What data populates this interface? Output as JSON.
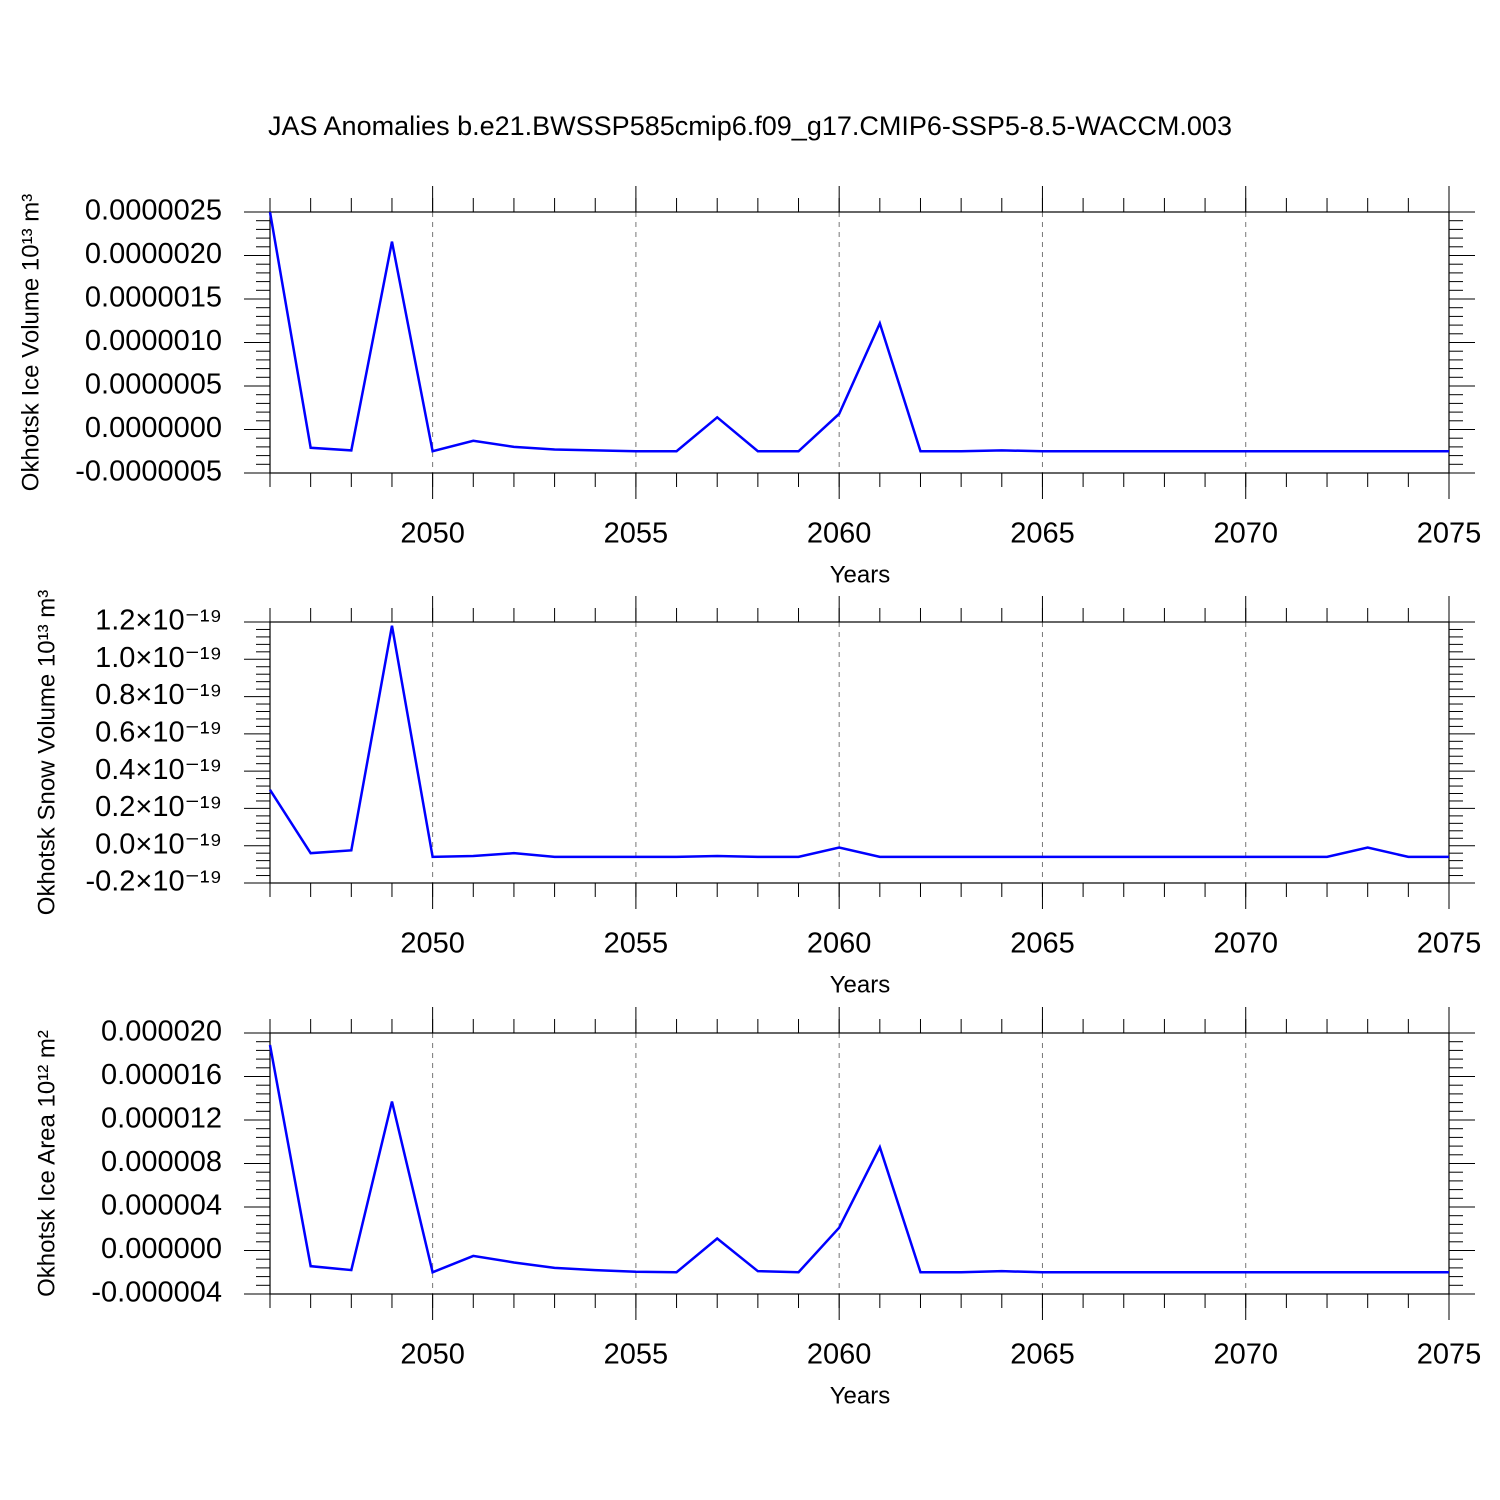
{
  "title": "JAS Anomalies b.e21.BWSSP585cmip6.f09_g17.CMIP6-SSP5-8.5-WACCM.003",
  "chart_data": [
    {
      "type": "line",
      "ylabel": "Okhotsk Ice Volume 10¹³ m³",
      "xlabel": "Years",
      "color": "#0000ff",
      "grid": true,
      "x": [
        2046,
        2047,
        2048,
        2049,
        2050,
        2051,
        2052,
        2053,
        2054,
        2055,
        2056,
        2057,
        2058,
        2059,
        2060,
        2061,
        2062,
        2063,
        2064,
        2065,
        2066,
        2067,
        2068,
        2069,
        2070,
        2071,
        2072,
        2073,
        2074,
        2075
      ],
      "values": [
        2.5e-06,
        -2.1e-07,
        -2.4e-07,
        2.16e-06,
        -2.5e-07,
        -1.3e-07,
        -2e-07,
        -2.3e-07,
        -2.4e-07,
        -2.5e-07,
        -2.5e-07,
        1.4e-07,
        -2.5e-07,
        -2.5e-07,
        1.8e-07,
        1.22e-06,
        -2.5e-07,
        -2.5e-07,
        -2.4e-07,
        -2.5e-07,
        -2.5e-07,
        -2.5e-07,
        -2.5e-07,
        -2.5e-07,
        -2.5e-07,
        -2.5e-07,
        -2.5e-07,
        -2.5e-07,
        -2.5e-07,
        -2.5e-07
      ],
      "xlim": [
        2046,
        2075
      ],
      "xticks": [
        2050,
        2055,
        2060,
        2065,
        2070,
        2075
      ],
      "ylim": [
        -5e-07,
        2.5e-06
      ],
      "yticks": [
        {
          "value": -5e-07,
          "label": "-0.0000005"
        },
        {
          "value": 0,
          "label": "0.0000000"
        },
        {
          "value": 5e-07,
          "label": "0.0000005"
        },
        {
          "value": 1e-06,
          "label": "0.0000010"
        },
        {
          "value": 1.5e-06,
          "label": "0.0000015"
        },
        {
          "value": 2e-06,
          "label": "0.0000020"
        },
        {
          "value": 2.5e-06,
          "label": "0.0000025"
        }
      ]
    },
    {
      "type": "line",
      "ylabel": "Okhotsk Snow Volume 10¹³ m³",
      "xlabel": "Years",
      "color": "#0000ff",
      "grid": true,
      "x": [
        2046,
        2047,
        2048,
        2049,
        2050,
        2051,
        2052,
        2053,
        2054,
        2055,
        2056,
        2057,
        2058,
        2059,
        2060,
        2061,
        2062,
        2063,
        2064,
        2065,
        2066,
        2067,
        2068,
        2069,
        2070,
        2071,
        2072,
        2073,
        2074,
        2075
      ],
      "values": [
        3e-20,
        -4e-21,
        -2.5e-21,
        1.18e-19,
        -6e-21,
        -5.5e-21,
        -4e-21,
        -6e-21,
        -6e-21,
        -6e-21,
        -6e-21,
        -5.5e-21,
        -6e-21,
        -6e-21,
        -1e-21,
        -6e-21,
        -6e-21,
        -6e-21,
        -6e-21,
        -6e-21,
        -6e-21,
        -6e-21,
        -6e-21,
        -6e-21,
        -6e-21,
        -6e-21,
        -6e-21,
        -1e-21,
        -6e-21,
        -6e-21
      ],
      "xlim": [
        2046,
        2075
      ],
      "xticks": [
        2050,
        2055,
        2060,
        2065,
        2070,
        2075
      ],
      "ylim": [
        -2e-20,
        1.2e-19
      ],
      "yticks": [
        {
          "value": -2e-20,
          "label": "-0.2×10⁻¹⁹"
        },
        {
          "value": 0,
          "label": "0.0×10⁻¹⁹"
        },
        {
          "value": 2e-20,
          "label": "0.2×10⁻¹⁹"
        },
        {
          "value": 4e-20,
          "label": "0.4×10⁻¹⁹"
        },
        {
          "value": 6e-20,
          "label": "0.6×10⁻¹⁹"
        },
        {
          "value": 8e-20,
          "label": "0.8×10⁻¹⁹"
        },
        {
          "value": 1e-19,
          "label": "1.0×10⁻¹⁹"
        },
        {
          "value": 1.2e-19,
          "label": "1.2×10⁻¹⁹"
        }
      ]
    },
    {
      "type": "line",
      "ylabel": "Okhotsk Ice Area 10¹² m²",
      "xlabel": "Years",
      "color": "#0000ff",
      "grid": true,
      "x": [
        2046,
        2047,
        2048,
        2049,
        2050,
        2051,
        2052,
        2053,
        2054,
        2055,
        2056,
        2057,
        2058,
        2059,
        2060,
        2061,
        2062,
        2063,
        2064,
        2065,
        2066,
        2067,
        2068,
        2069,
        2070,
        2071,
        2072,
        2073,
        2074,
        2075
      ],
      "values": [
        1.89e-05,
        -1.44e-06,
        -1.8e-06,
        1.37e-05,
        -2e-06,
        -5e-07,
        -1.1e-06,
        -1.6e-06,
        -1.8e-06,
        -1.95e-06,
        -2e-06,
        1.1e-06,
        -1.9e-06,
        -2e-06,
        2.1e-06,
        9.5e-06,
        -2e-06,
        -2e-06,
        -1.9e-06,
        -2e-06,
        -2e-06,
        -2e-06,
        -2e-06,
        -2e-06,
        -2e-06,
        -2e-06,
        -2e-06,
        -2e-06,
        -2e-06,
        -2e-06
      ],
      "xlim": [
        2046,
        2075
      ],
      "xticks": [
        2050,
        2055,
        2060,
        2065,
        2070,
        2075
      ],
      "ylim": [
        -4e-06,
        2e-05
      ],
      "yticks": [
        {
          "value": -4e-06,
          "label": "-0.000004"
        },
        {
          "value": 0,
          "label": "0.000000"
        },
        {
          "value": 4e-06,
          "label": "0.000004"
        },
        {
          "value": 8e-06,
          "label": "0.000008"
        },
        {
          "value": 1.2e-05,
          "label": "0.000012"
        },
        {
          "value": 1.6e-05,
          "label": "0.000016"
        },
        {
          "value": 2e-05,
          "label": "0.000020"
        }
      ]
    }
  ]
}
